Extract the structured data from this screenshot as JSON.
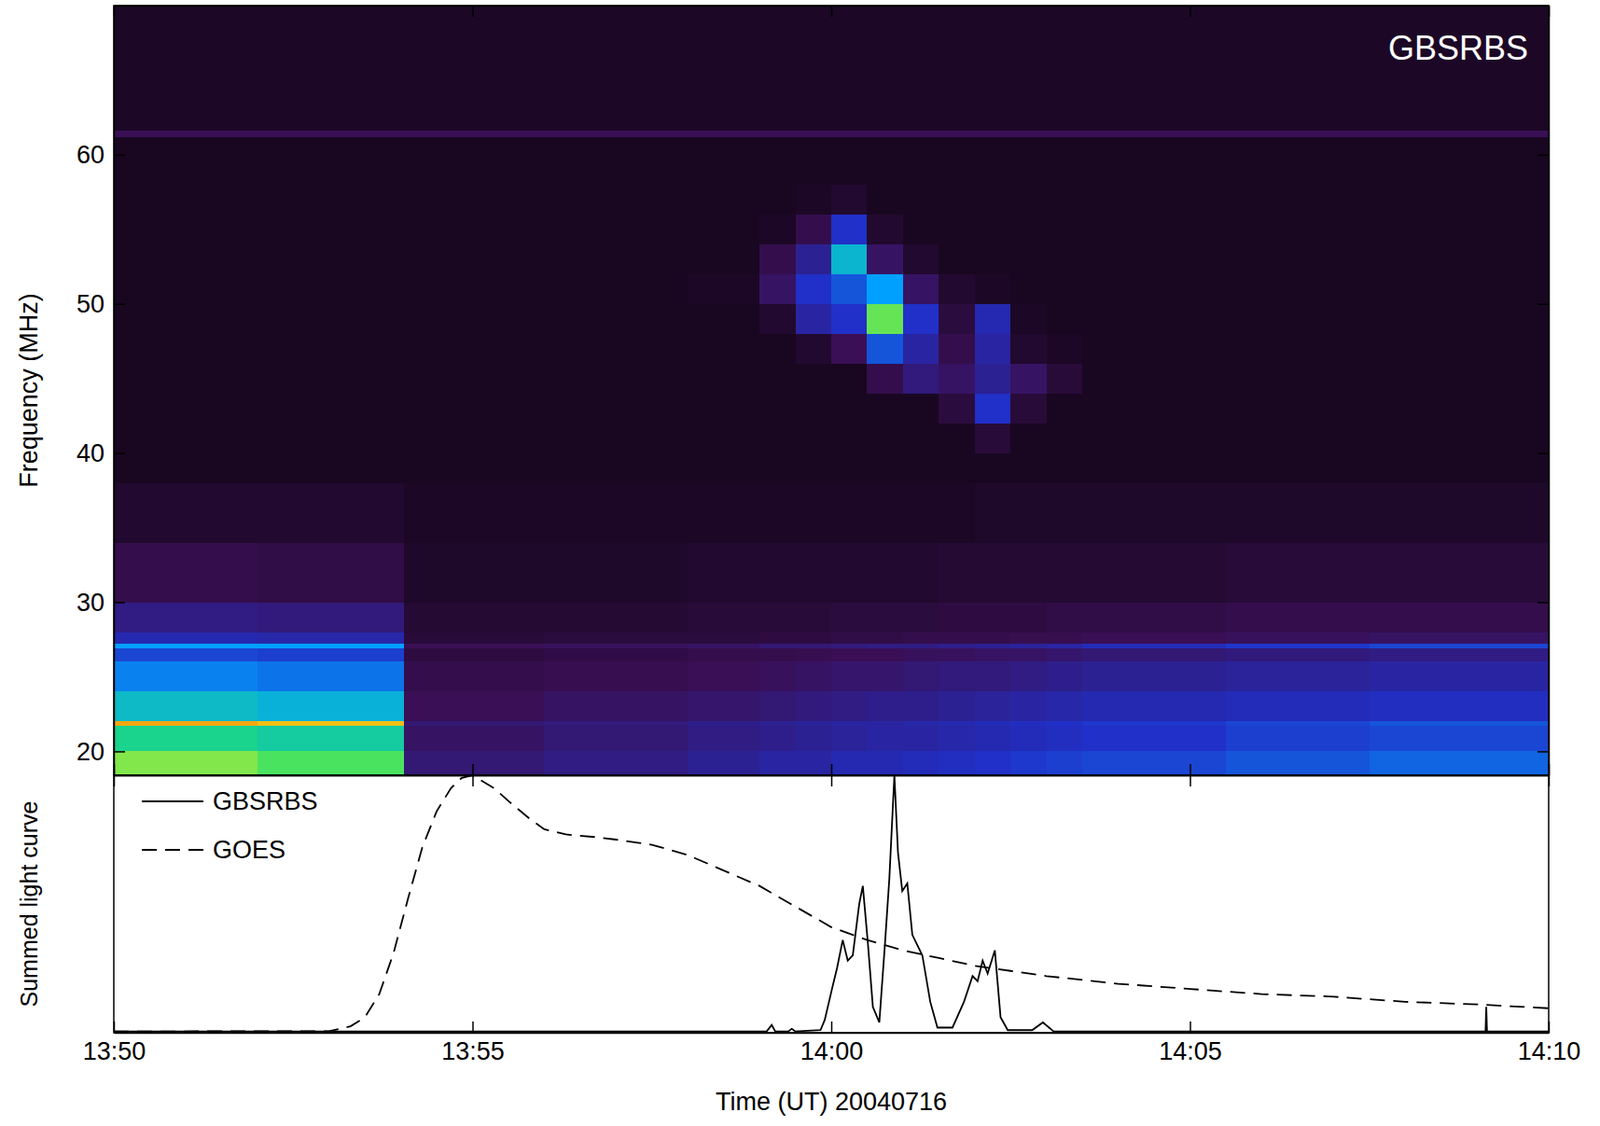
{
  "chart_data": [
    {
      "type": "heatmap",
      "title": "GBSRBS",
      "ylabel": "Frequency (MHz)",
      "xlim": [
        0,
        20
      ],
      "ylim": [
        18.4,
        70
      ],
      "xticks": [
        0,
        5,
        10,
        15,
        20
      ],
      "yticks": [
        20,
        30,
        40,
        50,
        60
      ],
      "tick_labels": "y",
      "zlim": [
        0,
        100
      ],
      "x_edges": [
        0,
        2,
        4.05,
        6,
        8,
        9,
        9.5,
        10,
        10.5,
        11,
        11.5,
        12,
        12.5,
        13,
        13.5,
        15.5,
        17.5,
        20
      ],
      "y_edges": [
        18.4,
        20,
        21.7,
        22.0,
        24,
        26,
        26.9,
        27.25,
        28,
        30,
        34,
        38,
        40,
        42,
        44,
        46,
        48,
        50,
        52,
        54,
        56,
        58,
        61.2,
        61.6,
        66,
        70
      ],
      "z": [
        [
          72,
          68,
          24,
          26,
          28,
          30,
          30,
          32,
          32,
          33,
          34,
          35,
          36,
          37,
          38,
          40,
          42
        ],
        [
          62,
          60,
          22,
          24,
          26,
          27,
          28,
          29,
          30,
          30,
          31,
          32,
          33,
          34,
          35,
          37,
          38
        ],
        [
          86,
          84,
          24,
          25,
          27,
          28,
          29,
          30,
          30,
          31,
          32,
          33,
          34,
          35,
          36,
          38,
          40
        ],
        [
          56,
          54,
          20,
          22,
          23,
          24,
          25,
          26,
          27,
          27,
          28,
          29,
          30,
          31,
          32,
          33,
          34
        ],
        [
          46,
          44,
          18,
          19,
          20,
          21,
          22,
          23,
          23,
          24,
          25,
          25,
          26,
          27,
          28,
          29,
          30
        ],
        [
          38,
          37,
          16,
          17,
          18,
          18,
          19,
          20,
          20,
          21,
          21,
          22,
          22,
          23,
          24,
          25,
          26
        ],
        [
          50,
          50,
          20,
          21,
          22,
          24,
          24,
          25,
          26,
          26,
          27,
          28,
          29,
          30,
          33,
          36,
          38
        ],
        [
          32,
          31,
          14,
          15,
          15,
          16,
          16,
          17,
          17,
          18,
          18,
          18,
          19,
          19,
          20,
          21,
          22
        ],
        [
          26,
          25,
          13,
          13,
          14,
          14,
          14,
          15,
          15,
          15,
          16,
          16,
          16,
          17,
          17,
          18,
          18
        ],
        [
          18,
          17,
          11,
          11,
          12,
          12,
          12,
          12,
          12,
          12,
          13,
          13,
          13,
          13,
          13,
          14,
          14
        ],
        [
          12,
          12,
          10,
          10,
          10,
          10,
          10,
          10,
          10,
          10,
          10,
          11,
          11,
          11,
          11,
          11,
          11
        ],
        [
          9,
          9,
          9,
          9,
          9,
          9,
          9,
          9,
          9,
          9,
          9,
          9,
          9,
          9,
          9,
          9,
          9
        ],
        [
          9,
          9,
          9,
          9,
          9,
          9,
          9,
          9,
          9,
          9,
          9,
          14,
          9,
          9,
          9,
          9,
          9
        ],
        [
          9,
          9,
          9,
          9,
          9,
          9,
          9,
          9,
          9,
          9,
          15,
          35,
          14,
          9,
          9,
          9,
          9
        ],
        [
          9,
          9,
          9,
          9,
          9,
          9,
          9,
          9,
          18,
          25,
          22,
          28,
          22,
          14,
          9,
          9,
          9
        ],
        [
          9,
          9,
          9,
          9,
          9,
          9,
          12,
          20,
          40,
          30,
          18,
          30,
          12,
          10,
          9,
          9,
          9
        ],
        [
          9,
          9,
          9,
          9,
          9,
          12,
          30,
          35,
          70,
          35,
          15,
          32,
          10,
          9,
          9,
          9,
          9
        ],
        [
          9,
          9,
          9,
          9,
          10,
          22,
          35,
          40,
          50,
          22,
          12,
          10,
          9,
          9,
          9,
          9,
          9
        ],
        [
          9,
          9,
          9,
          9,
          9,
          18,
          28,
          55,
          22,
          12,
          9,
          9,
          9,
          9,
          9,
          9,
          9
        ],
        [
          9,
          9,
          9,
          9,
          9,
          10,
          18,
          35,
          12,
          9,
          9,
          9,
          9,
          9,
          9,
          9,
          9
        ],
        [
          9,
          9,
          9,
          9,
          9,
          9,
          10,
          12,
          9,
          9,
          9,
          9,
          9,
          9,
          9,
          9,
          9
        ],
        [
          9,
          9,
          9,
          9,
          9,
          9,
          9,
          9,
          9,
          9,
          9,
          9,
          9,
          9,
          9,
          9,
          9
        ],
        [
          20,
          20,
          20,
          20,
          20,
          20,
          20,
          20,
          20,
          20,
          20,
          20,
          20,
          20,
          20,
          20,
          20
        ],
        [
          10,
          10,
          10,
          10,
          10,
          10,
          10,
          10,
          10,
          10,
          10,
          10,
          10,
          10,
          10,
          10,
          10
        ],
        [
          10,
          10,
          10,
          10,
          10,
          10,
          10,
          10,
          10,
          10,
          10,
          10,
          10,
          10,
          10,
          10,
          10
        ]
      ]
    },
    {
      "type": "line",
      "xlabel": "Time (UT) 20040716",
      "ylabel": "Summed light curve",
      "xlim": [
        0,
        20
      ],
      "ylim": [
        0,
        1
      ],
      "xticks": [
        {
          "value": 0,
          "label": "13:50"
        },
        {
          "value": 5,
          "label": "13:55"
        },
        {
          "value": 10,
          "label": "14:00"
        },
        {
          "value": 15,
          "label": "14:05"
        },
        {
          "value": 20,
          "label": "14:10"
        }
      ],
      "tick_labels": "x",
      "legend": "upper left",
      "series": [
        {
          "name": "GBSRBS",
          "color": "#000000",
          "line_style": "solid",
          "x": [
            0,
            9.1,
            9.17,
            9.22,
            9.4,
            9.45,
            9.5,
            9.85,
            9.91,
            10.01,
            10.08,
            10.16,
            10.23,
            10.3,
            10.39,
            10.44,
            10.51,
            10.58,
            10.67,
            10.75,
            10.81,
            10.88,
            10.93,
            10.99,
            11.06,
            11.13,
            11.2,
            11.27,
            11.38,
            11.48,
            11.69,
            11.85,
            11.97,
            12.04,
            12.11,
            12.18,
            12.28,
            12.36,
            12.46,
            12.8,
            12.95,
            13.1,
            19.12,
            19.13,
            19.14,
            20
          ],
          "values": [
            0.005,
            0.005,
            0.03,
            0.005,
            0.005,
            0.015,
            0.005,
            0.01,
            0.05,
            0.17,
            0.25,
            0.36,
            0.28,
            0.3,
            0.5,
            0.57,
            0.35,
            0.1,
            0.04,
            0.35,
            0.6,
            1.0,
            0.7,
            0.55,
            0.58,
            0.38,
            0.34,
            0.3,
            0.12,
            0.02,
            0.02,
            0.12,
            0.22,
            0.2,
            0.28,
            0.23,
            0.32,
            0.06,
            0.01,
            0.01,
            0.04,
            0.005,
            0.005,
            0.1,
            0.005,
            0.005
          ]
        },
        {
          "name": "GOES",
          "color": "#000000",
          "line_style": "dashed",
          "x": [
            0,
            3.0,
            3.3,
            3.5,
            3.7,
            3.9,
            4.1,
            4.3,
            4.5,
            4.7,
            4.85,
            5.0,
            5.3,
            5.5,
            5.8,
            6.0,
            6.3,
            6.7,
            7.0,
            7.5,
            8.0,
            8.5,
            9.0,
            9.5,
            10.0,
            10.5,
            11.0,
            11.5,
            12.0,
            12.5,
            13.0,
            14.0,
            15.0,
            16.0,
            17.0,
            18.0,
            19.0,
            20.0
          ],
          "values": [
            0.005,
            0.006,
            0.025,
            0.06,
            0.15,
            0.31,
            0.52,
            0.72,
            0.86,
            0.95,
            0.99,
            1.0,
            0.95,
            0.9,
            0.83,
            0.79,
            0.77,
            0.76,
            0.75,
            0.73,
            0.69,
            0.63,
            0.57,
            0.49,
            0.41,
            0.36,
            0.32,
            0.29,
            0.26,
            0.24,
            0.22,
            0.19,
            0.17,
            0.15,
            0.14,
            0.12,
            0.11,
            0.095
          ]
        }
      ]
    }
  ]
}
